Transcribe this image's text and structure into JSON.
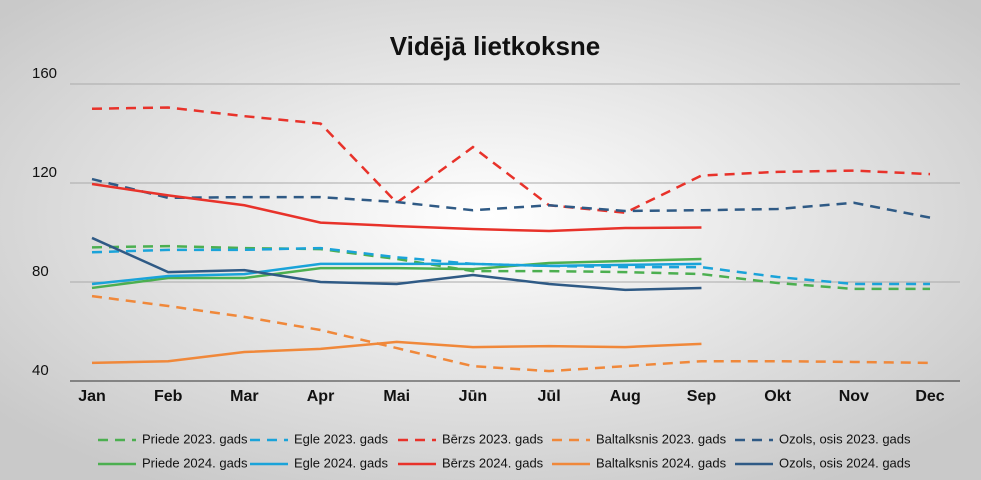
{
  "chart_data": {
    "type": "line",
    "title": "Vidējā lietkoksne",
    "categories": [
      "Jan",
      "Feb",
      "Mar",
      "Apr",
      "Mai",
      "Jūn",
      "Jūl",
      "Aug",
      "Sep",
      "Okt",
      "Nov",
      "Dec"
    ],
    "ylim": [
      40,
      160
    ],
    "yticks": [
      40,
      80,
      120,
      160
    ],
    "grid": true,
    "legend": "bottom",
    "series": [
      {
        "name": "Priede 2023. gads",
        "color": "#4caf50",
        "dash": true,
        "values": [
          94,
          94.5,
          93.7,
          93.3,
          89.3,
          84.4,
          84.4,
          84,
          83.2,
          79.6,
          77.2,
          77.2
        ]
      },
      {
        "name": "Egle 2023. gads",
        "color": "#1aa3d9",
        "dash": true,
        "values": [
          92,
          93,
          93,
          93.7,
          90,
          87.3,
          86.5,
          86,
          86,
          82,
          79.2,
          79.2
        ]
      },
      {
        "name": "Bērzs 2023. gads",
        "color": "#e8322a",
        "dash": true,
        "values": [
          150,
          150.5,
          147,
          144,
          112,
          134.5,
          111,
          108,
          123,
          124.5,
          125,
          123.6
        ]
      },
      {
        "name": "Baltalksnis 2023. gads",
        "color": "#f0883a",
        "dash": true,
        "values": [
          74.3,
          70.3,
          65.9,
          60.6,
          53.3,
          46,
          44,
          46,
          48,
          48,
          47.7,
          47.3
        ]
      },
      {
        "name": "Ozols, osis 2023. gads",
        "color": "#2f5a85",
        "dash": true,
        "values": [
          121.6,
          114,
          114.3,
          114.3,
          112.3,
          109,
          111,
          108.7,
          109,
          109.5,
          112,
          106
        ]
      },
      {
        "name": "Priede 2024. gads",
        "color": "#4caf50",
        "dash": false,
        "values": [
          77.6,
          81.6,
          81.6,
          85.6,
          85.6,
          85.2,
          87.7,
          88.5,
          89.3,
          null,
          null,
          null
        ]
      },
      {
        "name": "Egle 2024. gads",
        "color": "#1aa3d9",
        "dash": false,
        "values": [
          79.2,
          82.4,
          83.2,
          87.3,
          87.3,
          87.3,
          86.5,
          86.9,
          87.3,
          null,
          null,
          null
        ]
      },
      {
        "name": "Bērzs 2024. gads",
        "color": "#e8322a",
        "dash": false,
        "values": [
          119.6,
          115,
          111,
          104,
          102.6,
          101.4,
          100.6,
          101.8,
          102,
          null,
          null,
          null
        ]
      },
      {
        "name": "Baltalksnis 2024. gads",
        "color": "#f0883a",
        "dash": false,
        "values": [
          47.3,
          48,
          51.7,
          53,
          55.8,
          53.7,
          54.1,
          53.7,
          55,
          null,
          null,
          null
        ]
      },
      {
        "name": "Ozols, osis 2024. gads",
        "color": "#2f5a85",
        "dash": false,
        "values": [
          97.8,
          84,
          84.8,
          80,
          79.2,
          82.8,
          79.2,
          76.8,
          77.6,
          null,
          null,
          null
        ]
      }
    ]
  }
}
